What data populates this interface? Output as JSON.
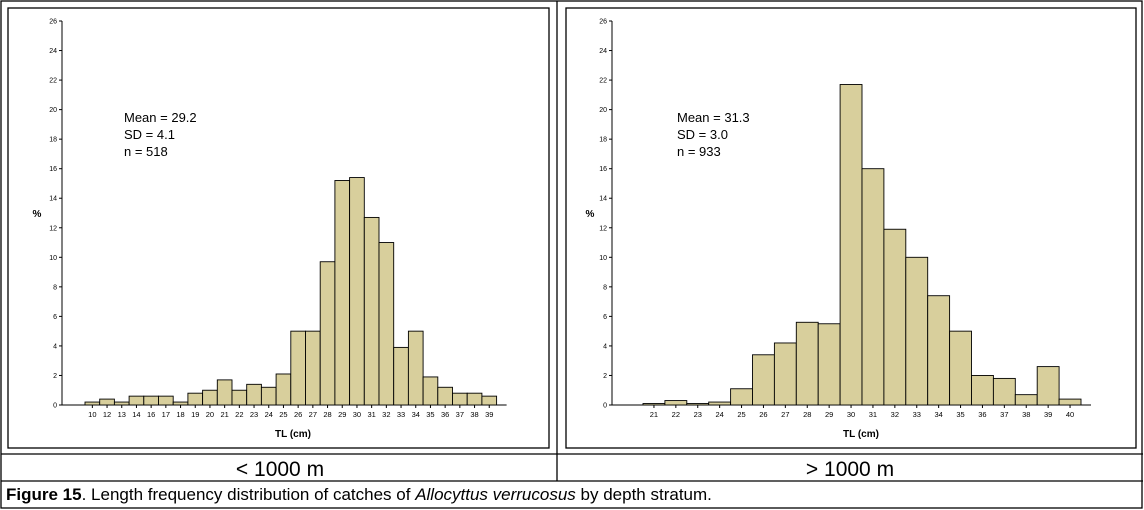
{
  "caption": {
    "label": "Figure 15",
    "text_before": ". Length frequency distribution of catches of ",
    "species": "Allocyttus verrucosus",
    "text_after": " by depth stratum."
  },
  "colors": {
    "bar_fill": "#d8cf9c",
    "bar_stroke": "#000000",
    "background": "#ffffff"
  },
  "chart_data": [
    {
      "type": "bar",
      "depth_label": "< 1000 m",
      "xlabel": "TL (cm)",
      "ylabel": "%",
      "ylim": [
        0,
        26
      ],
      "yticks": [
        0,
        2,
        4,
        6,
        8,
        10,
        12,
        14,
        16,
        18,
        20,
        22,
        24,
        26
      ],
      "grid": false,
      "stats": [
        "Mean = 29.2",
        "SD = 4.1",
        "n = 518"
      ],
      "categories": [
        "10",
        "12",
        "13",
        "14",
        "16",
        "17",
        "18",
        "19",
        "20",
        "21",
        "22",
        "23",
        "24",
        "25",
        "26",
        "27",
        "28",
        "29",
        "30",
        "31",
        "32",
        "33",
        "34",
        "35",
        "36",
        "37",
        "38",
        "39"
      ],
      "values": [
        0.2,
        0.4,
        0.2,
        0.6,
        0.6,
        0.6,
        0.2,
        0.8,
        1.0,
        1.7,
        1.0,
        1.4,
        1.2,
        2.1,
        5.0,
        5.0,
        9.7,
        15.2,
        15.4,
        12.7,
        11.0,
        3.9,
        5.0,
        1.9,
        1.2,
        0.8,
        0.8,
        0.6
      ]
    },
    {
      "type": "bar",
      "depth_label": "> 1000 m",
      "xlabel": "TL (cm)",
      "ylabel": "%",
      "ylim": [
        0,
        26
      ],
      "yticks": [
        0,
        2,
        4,
        6,
        8,
        10,
        12,
        14,
        16,
        18,
        20,
        22,
        24,
        26
      ],
      "grid": false,
      "stats": [
        "Mean = 31.3",
        "SD = 3.0",
        "n = 933"
      ],
      "categories": [
        "21",
        "22",
        "23",
        "24",
        "25",
        "26",
        "27",
        "28",
        "29",
        "30",
        "31",
        "32",
        "33",
        "34",
        "35",
        "36",
        "37",
        "38",
        "39",
        "40"
      ],
      "values": [
        0.1,
        0.3,
        0.1,
        0.2,
        1.1,
        3.4,
        4.2,
        5.6,
        5.5,
        21.7,
        16.0,
        11.9,
        10.0,
        7.4,
        5.0,
        2.0,
        1.8,
        0.7,
        2.6,
        0.4
      ]
    }
  ]
}
